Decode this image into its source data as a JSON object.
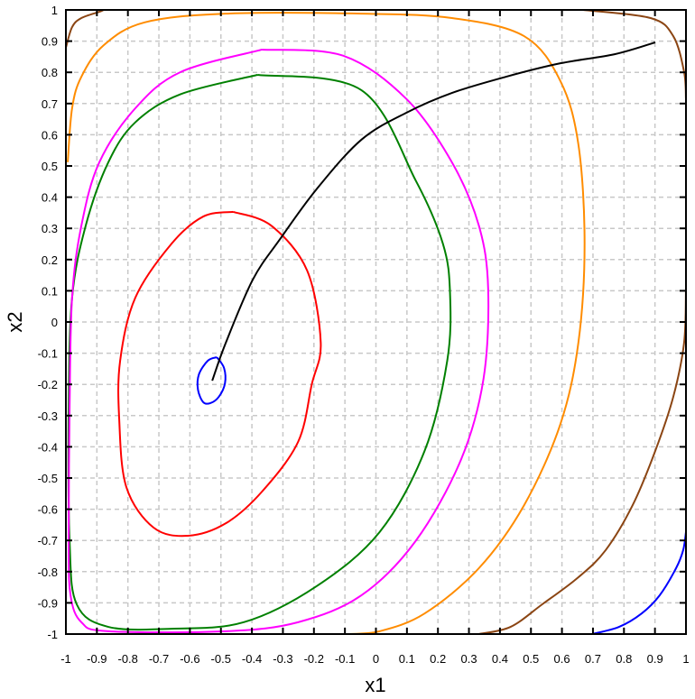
{
  "chart_data": {
    "type": "line",
    "title": "",
    "xlabel": "x1",
    "ylabel": "x2",
    "xlim": [
      -1,
      1
    ],
    "ylim": [
      -1,
      1
    ],
    "grid": true,
    "xticks": [
      "-1",
      "-0.9",
      "-0.8",
      "-0.7",
      "-0.6",
      "-0.5",
      "-0.4",
      "-0.3",
      "-0.2",
      "-0.1",
      "0",
      "0.1",
      "0.2",
      "0.3",
      "0.4",
      "0.5",
      "0.6",
      "0.7",
      "0.8",
      "0.9",
      "1"
    ],
    "yticks": [
      "-1",
      "-0.9",
      "-0.8",
      "-0.7",
      "-0.6",
      "-0.5",
      "-0.4",
      "-0.3",
      "-0.2",
      "-0.1",
      "0",
      "0.1",
      "0.2",
      "0.3",
      "0.4",
      "0.5",
      "0.6",
      "0.7",
      "0.8",
      "0.9",
      "1"
    ],
    "series": [
      {
        "color": "#0000ff",
        "points": [
          [
            -0.513,
            -0.113
          ],
          [
            -0.49,
            -0.147
          ],
          [
            -0.487,
            -0.197
          ],
          [
            -0.507,
            -0.24
          ],
          [
            -0.534,
            -0.26
          ],
          [
            -0.557,
            -0.257
          ],
          [
            -0.574,
            -0.217
          ],
          [
            -0.571,
            -0.168
          ],
          [
            -0.542,
            -0.124
          ],
          [
            -0.513,
            -0.113
          ]
        ]
      },
      {
        "color": "#ff0000",
        "points": [
          [
            -0.461,
            0.353
          ],
          [
            -0.338,
            0.309
          ],
          [
            -0.222,
            0.165
          ],
          [
            -0.178,
            -0.066
          ],
          [
            -0.207,
            -0.2
          ],
          [
            -0.251,
            -0.384
          ],
          [
            -0.367,
            -0.543
          ],
          [
            -0.484,
            -0.645
          ],
          [
            -0.606,
            -0.685
          ],
          [
            -0.717,
            -0.659
          ],
          [
            -0.805,
            -0.529
          ],
          [
            -0.828,
            -0.312
          ],
          [
            -0.825,
            -0.124
          ],
          [
            -0.776,
            0.078
          ],
          [
            -0.659,
            0.251
          ],
          [
            -0.557,
            0.338
          ],
          [
            -0.461,
            0.353
          ]
        ]
      },
      {
        "color": "#008000",
        "points": [
          [
            -0.382,
            0.792
          ],
          [
            -0.047,
            0.743
          ],
          [
            0.128,
            0.454
          ],
          [
            0.216,
            0.251
          ],
          [
            0.239,
            0.092
          ],
          [
            0.23,
            -0.124
          ],
          [
            0.157,
            -0.413
          ],
          [
            0.012,
            -0.673
          ],
          [
            -0.192,
            -0.847
          ],
          [
            -0.426,
            -0.962
          ],
          [
            -0.659,
            -0.983
          ],
          [
            -0.863,
            -0.977
          ],
          [
            -0.965,
            -0.905
          ],
          [
            -0.988,
            -0.702
          ],
          [
            -0.991,
            -0.269
          ],
          [
            -0.98,
            0.078
          ],
          [
            -0.936,
            0.309
          ],
          [
            -0.863,
            0.512
          ],
          [
            -0.776,
            0.64
          ],
          [
            -0.63,
            0.73
          ],
          [
            -0.382,
            0.792
          ]
        ]
      },
      {
        "color": "#ff00ff",
        "points": [
          [
            -0.367,
            0.873
          ],
          [
            -0.105,
            0.853
          ],
          [
            0.099,
            0.714
          ],
          [
            0.245,
            0.512
          ],
          [
            0.332,
            0.309
          ],
          [
            0.362,
            0.107
          ],
          [
            0.347,
            -0.182
          ],
          [
            0.274,
            -0.442
          ],
          [
            0.128,
            -0.702
          ],
          [
            -0.047,
            -0.876
          ],
          [
            -0.251,
            -0.962
          ],
          [
            -0.484,
            -0.991
          ],
          [
            -0.863,
            -0.991
          ],
          [
            -0.95,
            -0.962
          ],
          [
            -0.985,
            -0.876
          ],
          [
            -0.991,
            -0.702
          ],
          [
            -0.988,
            -0.269
          ],
          [
            -0.98,
            0.078
          ],
          [
            -0.95,
            0.309
          ],
          [
            -0.892,
            0.512
          ],
          [
            -0.776,
            0.685
          ],
          [
            -0.63,
            0.801
          ],
          [
            -0.367,
            0.873
          ]
        ]
      },
      {
        "color": "#ff8c00",
        "points": [
          [
            -0.994,
            0.512
          ],
          [
            -0.98,
            0.685
          ],
          [
            -0.95,
            0.786
          ],
          [
            -0.878,
            0.887
          ],
          [
            -0.746,
            0.96
          ],
          [
            -0.484,
            0.988
          ],
          [
            -0.047,
            0.988
          ],
          [
            0.245,
            0.974
          ],
          [
            0.478,
            0.916
          ],
          [
            0.595,
            0.772
          ],
          [
            0.653,
            0.569
          ],
          [
            0.673,
            0.251
          ],
          [
            0.653,
            -0.066
          ],
          [
            0.595,
            -0.327
          ],
          [
            0.478,
            -0.587
          ],
          [
            0.332,
            -0.789
          ],
          [
            0.157,
            -0.934
          ],
          [
            0.012,
            -0.991
          ],
          [
            -0.096,
            -1
          ]
        ]
      },
      {
        "color": "#8b4513",
        "points": [
          [
            -1,
            0.879
          ],
          [
            -0.98,
            0.945
          ],
          [
            -0.95,
            0.974
          ],
          [
            -0.892,
            0.994
          ],
          [
            -0.878,
            1
          ]
        ]
      },
      {
        "color": "#8b4513",
        "points": [
          [
            0.668,
            1
          ],
          [
            0.886,
            0.974
          ],
          [
            0.959,
            0.916
          ],
          [
            0.994,
            0.801
          ],
          [
            1,
            0.714
          ]
        ]
      },
      {
        "color": "#8b4513",
        "points": [
          [
            1,
            0.107
          ],
          [
            0.994,
            -0.066
          ],
          [
            0.959,
            -0.24
          ],
          [
            0.901,
            -0.413
          ],
          [
            0.828,
            -0.587
          ],
          [
            0.741,
            -0.731
          ],
          [
            0.653,
            -0.818
          ],
          [
            0.536,
            -0.905
          ],
          [
            0.434,
            -0.977
          ],
          [
            0.332,
            -1
          ]
        ]
      },
      {
        "color": "#0000ff",
        "points": [
          [
            0.697,
            -1
          ],
          [
            0.784,
            -0.977
          ],
          [
            0.857,
            -0.934
          ],
          [
            0.915,
            -0.876
          ],
          [
            0.968,
            -0.789
          ],
          [
            0.991,
            -0.731
          ],
          [
            1,
            -0.673
          ]
        ]
      },
      {
        "color": "#000000",
        "points": [
          [
            -0.528,
            -0.188
          ],
          [
            -0.484,
            -0.066
          ],
          [
            -0.397,
            0.136
          ],
          [
            -0.309,
            0.266
          ],
          [
            -0.192,
            0.425
          ],
          [
            -0.047,
            0.584
          ],
          [
            0.099,
            0.671
          ],
          [
            0.245,
            0.734
          ],
          [
            0.42,
            0.786
          ],
          [
            0.595,
            0.829
          ],
          [
            0.77,
            0.858
          ],
          [
            0.901,
            0.896
          ]
        ]
      }
    ]
  }
}
